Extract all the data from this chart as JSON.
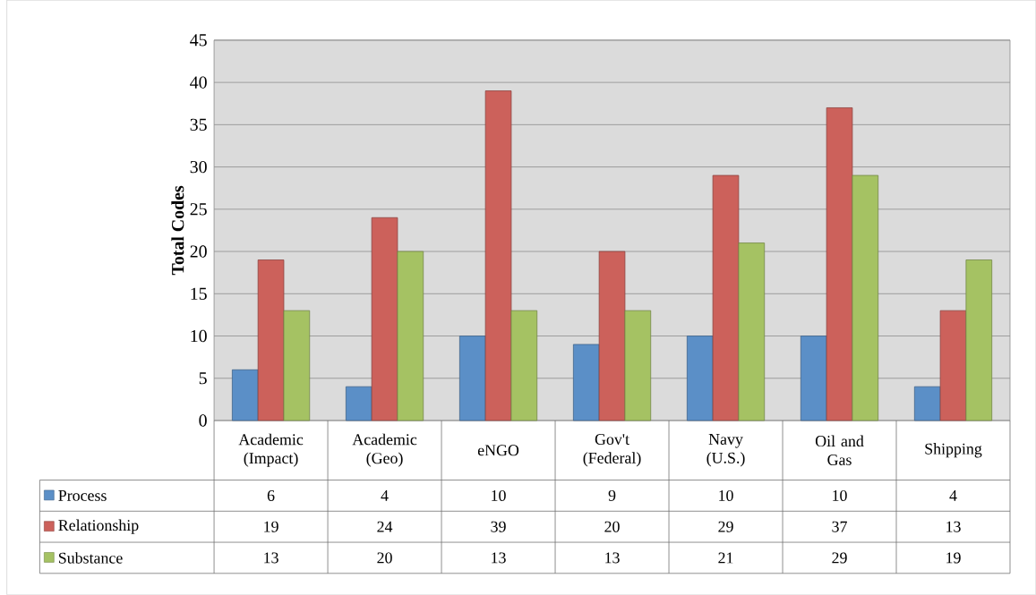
{
  "chart_data": {
    "type": "bar",
    "ylabel": "Total Codes",
    "categories": [
      "Academic (Impact)",
      "Academic (Geo)",
      "eNGO",
      "Gov't (Federal)",
      "Navy (U.S.)",
      "Oil and Gas",
      "Shipping"
    ],
    "series": [
      {
        "name": "Process",
        "color": "#5b8fc7",
        "values": [
          6,
          4,
          10,
          9,
          10,
          10,
          4
        ]
      },
      {
        "name": "Relationship",
        "color": "#cc615b",
        "values": [
          19,
          24,
          39,
          20,
          29,
          37,
          13
        ]
      },
      {
        "name": "Substance",
        "color": "#a5c263",
        "values": [
          13,
          20,
          13,
          13,
          21,
          29,
          19
        ]
      }
    ],
    "ylim": [
      0,
      45
    ],
    "yticks": [
      0,
      5,
      10,
      15,
      20,
      25,
      30,
      35,
      40,
      45
    ],
    "grid": "y",
    "legend": "bottom",
    "data_labels": true
  }
}
